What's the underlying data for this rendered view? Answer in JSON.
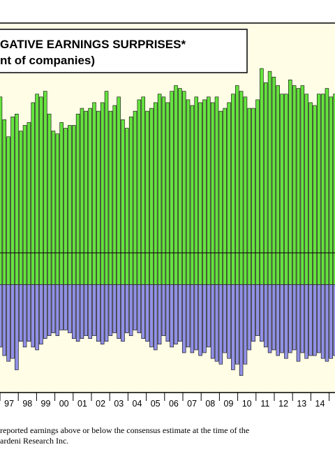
{
  "chart_data": {
    "type": "bar",
    "title_lines": [
      "GATIVE EARNINGS SURPRISES*",
      "nt of companies)"
    ],
    "series": [
      {
        "name": "",
        "color": "#66e33f"
      },
      {
        "name": "",
        "color": "#9191e6"
      }
    ],
    "x_tick_labels": [
      "97",
      "98",
      "99",
      "00",
      "01",
      "02",
      "03",
      "04",
      "05",
      "06",
      "07",
      "08",
      "09",
      "10",
      "11",
      "12",
      "13",
      "14"
    ],
    "positive": [
      66,
      58,
      52,
      59,
      60,
      54,
      56,
      57,
      64,
      67,
      66,
      68,
      60,
      54,
      53,
      57,
      55,
      56,
      56,
      60,
      62,
      61,
      62,
      64,
      61,
      64,
      68,
      61,
      63,
      66,
      58,
      55,
      59,
      61,
      65,
      66,
      61,
      62,
      64,
      67,
      66,
      64,
      68,
      70,
      69,
      68,
      65,
      63,
      66,
      64,
      65,
      66,
      64,
      66,
      61,
      62,
      64,
      67,
      70,
      68,
      66,
      62,
      62,
      65,
      76,
      71,
      75,
      73,
      70,
      67,
      67,
      72,
      70,
      69,
      70,
      67,
      64,
      63,
      67,
      67,
      69,
      66,
      67,
      67,
      68,
      67,
      69,
      69,
      72,
      68
    ],
    "negative": [
      -22,
      -25,
      -27,
      -26,
      -30,
      -20,
      -22,
      -20,
      -22,
      -23,
      -21,
      -19,
      -18,
      -17,
      -18,
      -16,
      -16,
      -17,
      -19,
      -20,
      -19,
      -18,
      -19,
      -18,
      -20,
      -21,
      -20,
      -18,
      -17,
      -19,
      -20,
      -17,
      -18,
      -16,
      -17,
      -19,
      -20,
      -22,
      -23,
      -21,
      -18,
      -20,
      -22,
      -21,
      -20,
      -24,
      -22,
      -24,
      -23,
      -25,
      -24,
      -22,
      -26,
      -27,
      -28,
      -24,
      -26,
      -30,
      -28,
      -32,
      -28,
      -23,
      -20,
      -18,
      -20,
      -22,
      -24,
      -23,
      -25,
      -24,
      -26,
      -24,
      -23,
      -27,
      -24,
      -26,
      -25,
      -25,
      -24,
      -26,
      -27,
      -26,
      -25,
      -24,
      -25,
      -24,
      -26,
      -23,
      -23,
      -24
    ],
    "ylim": [
      -38,
      92
    ]
  },
  "footnotes": [
    "reported earnings above or below the consensus estimate at the time of the",
    "ardeni Research Inc."
  ]
}
